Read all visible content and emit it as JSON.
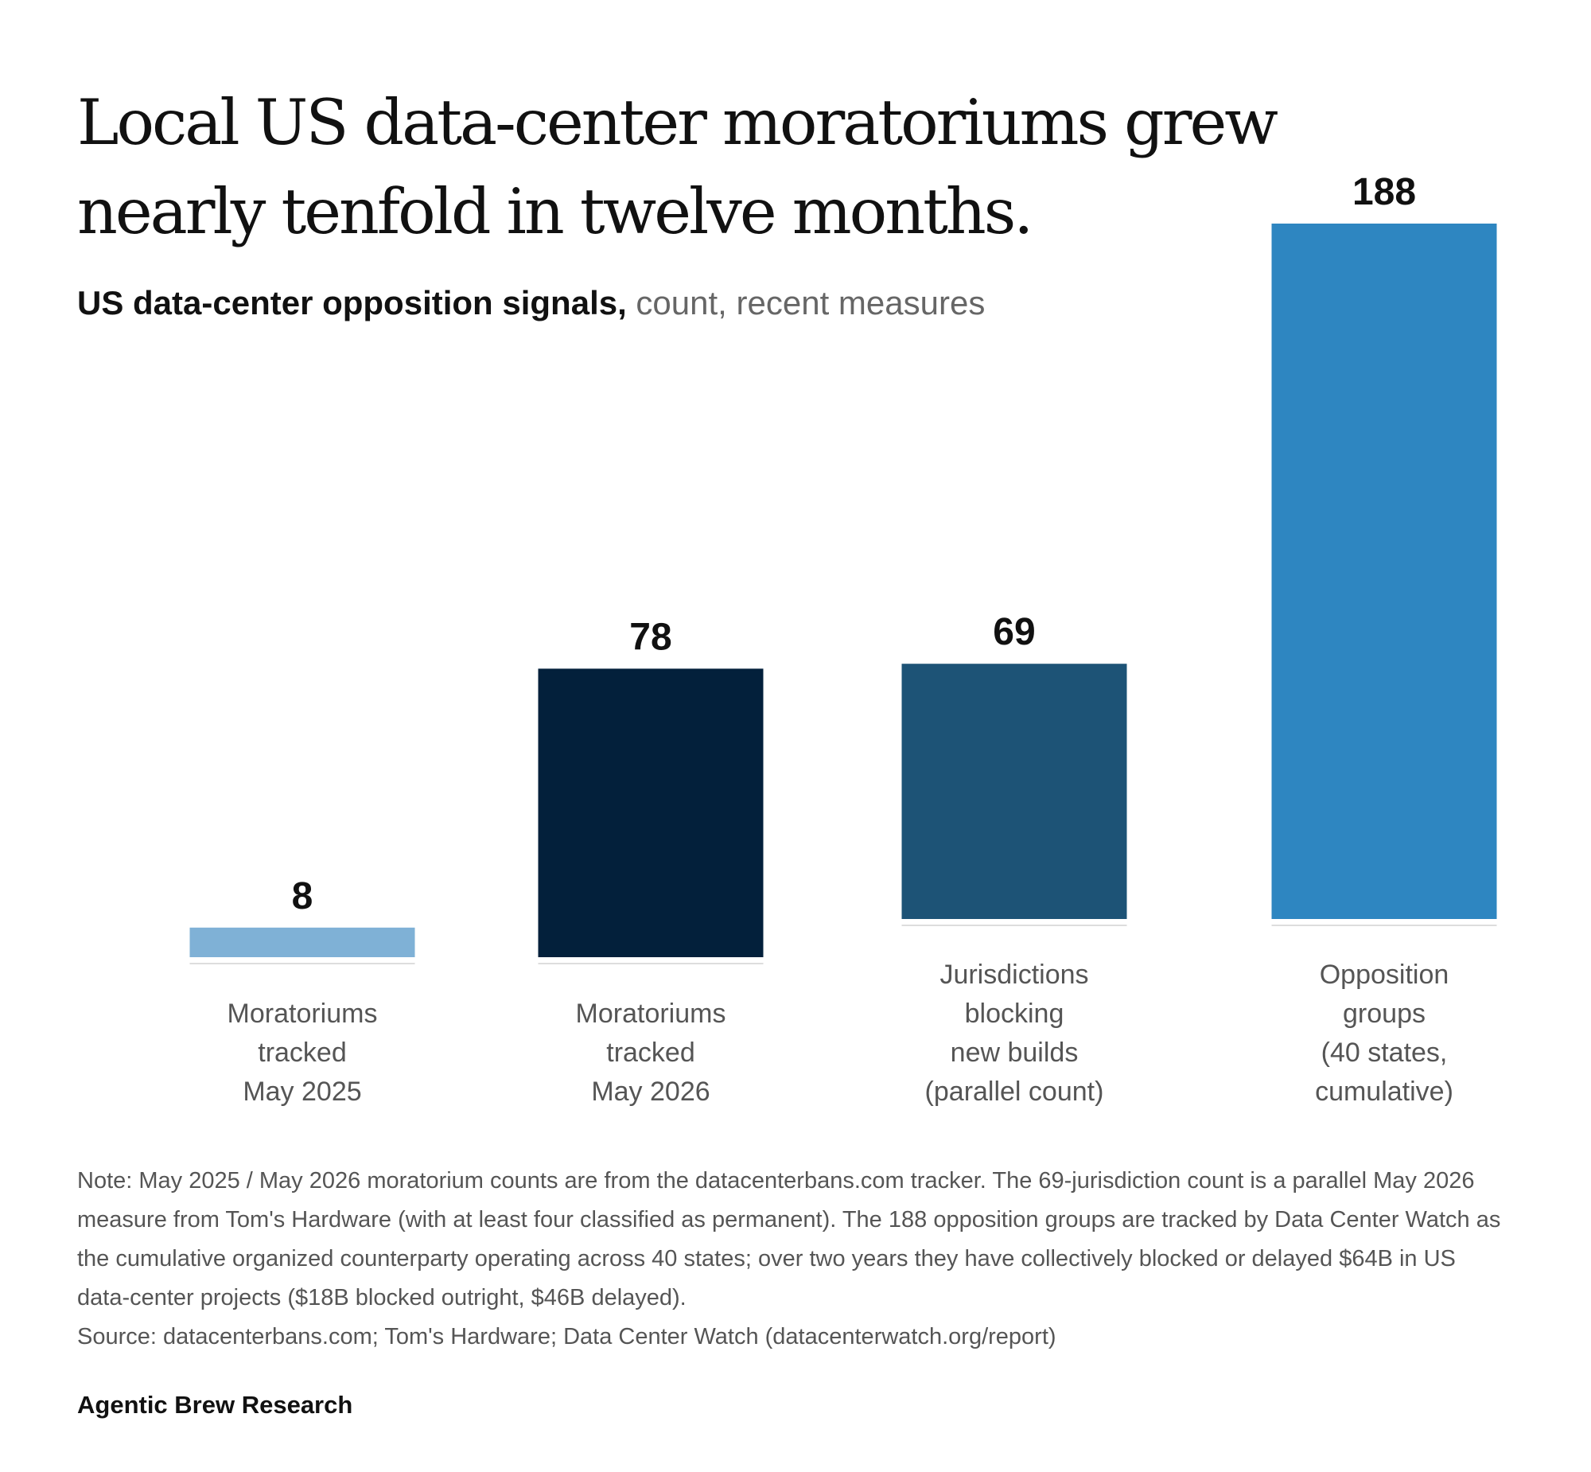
{
  "header": {
    "title": "Local US data-center moratoriums grew nearly tenfold in twelve months.",
    "subtitle_strong": "US data-center opposition signals,",
    "subtitle_light": " count, recent measures"
  },
  "chart_data": {
    "type": "bar",
    "categories": [
      [
        "Moratoriums",
        "tracked",
        "May 2025"
      ],
      [
        "Moratoriums",
        "tracked",
        "May 2026"
      ],
      [
        "Jurisdictions",
        "blocking",
        "new builds",
        "(parallel count)"
      ],
      [
        "Opposition",
        "groups",
        "(40 states,",
        "cumulative)"
      ]
    ],
    "values": [
      8,
      78,
      69,
      188
    ],
    "data_labels": [
      "8",
      "78",
      "69",
      "188"
    ],
    "colors": [
      "#7fb1d6",
      "#03203b",
      "#1d5376",
      "#2e86c1"
    ],
    "groups": [
      1,
      1,
      2,
      2
    ],
    "ylim": [
      0,
      188
    ],
    "grid": false,
    "legend": "none"
  },
  "footer": {
    "note": "Note: May 2025 / May 2026 moratorium counts are from the datacenterbans.com tracker. The 69-jurisdiction count is a parallel May 2026 measure from Tom's Hardware (with at least four classified as permanent). The 188 opposition groups are tracked by Data Center Watch as the cumulative organized counterparty operating across 40 states; over two years they have collectively blocked or delayed $64B in US data-center projects ($18B blocked outright, $46B delayed).",
    "source": "Source: datacenterbans.com; Tom's Hardware; Data Center Watch (datacenterwatch.org/report)",
    "brand": "Agentic Brew Research"
  }
}
